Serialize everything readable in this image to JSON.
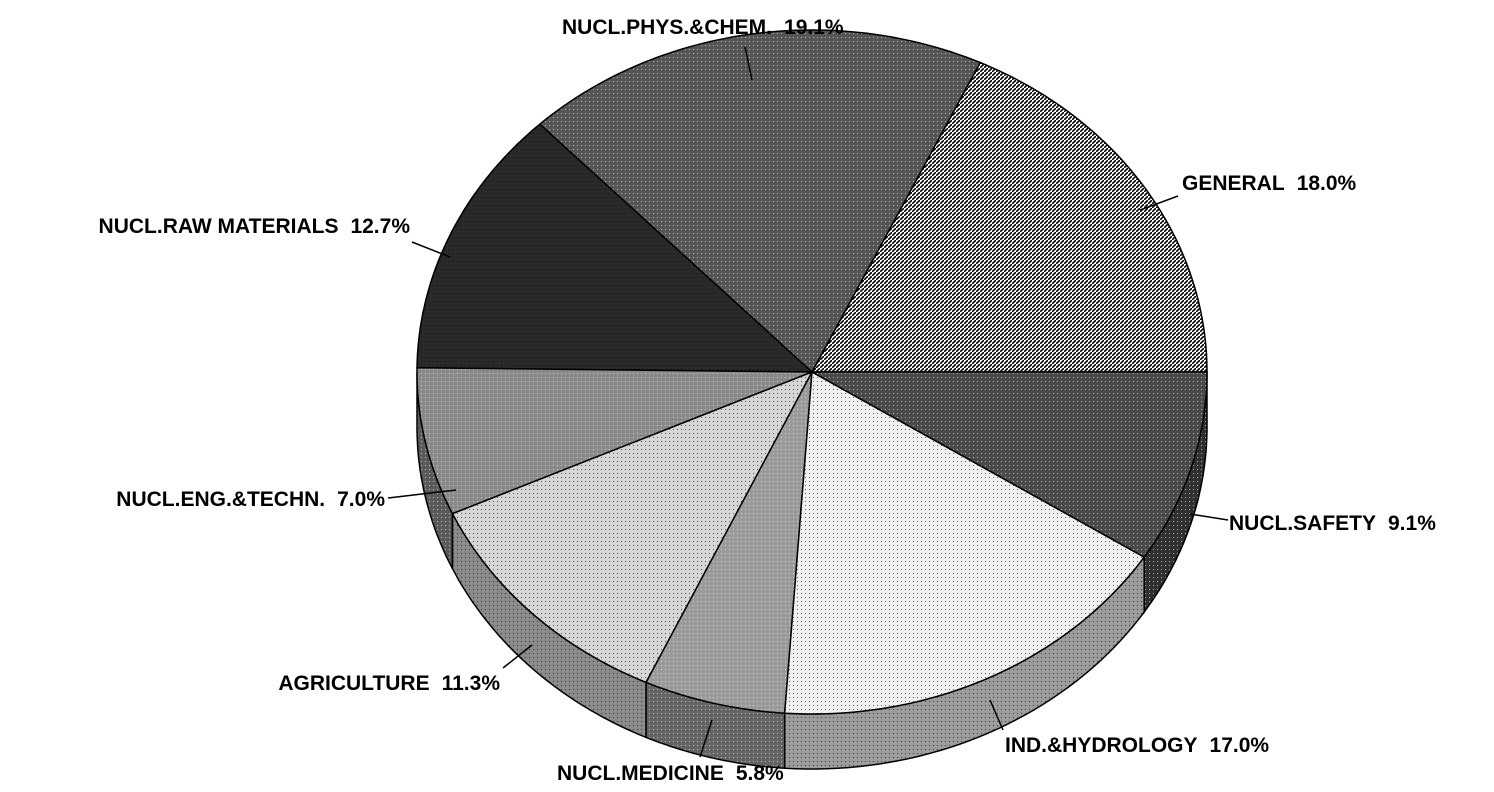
{
  "chart_data": {
    "type": "pie3d",
    "categories": [
      "GENERAL",
      "NUCL.PHYS.&CHEM.",
      "NUCL.RAW MATERIALS",
      "NUCL.ENG.&TECHN.",
      "AGRICULTURE",
      "NUCL.MEDICINE",
      "IND.&HYDROLOGY",
      "NUCL.SAFETY"
    ],
    "values": [
      18.0,
      19.1,
      12.7,
      7.0,
      11.3,
      5.8,
      17.0,
      9.1
    ],
    "value_labels": [
      "18.0%",
      "19.1%",
      "12.7%",
      "7.0%",
      "11.3%",
      "5.8%",
      "17.0%",
      "9.1%"
    ],
    "colors": [
      "#ffffff",
      "#555555",
      "#2a2a2a",
      "#8a8a8a",
      "#d6d6d6",
      "#9a9a9a",
      "#f0f0f0",
      "#4a4a4a"
    ]
  }
}
